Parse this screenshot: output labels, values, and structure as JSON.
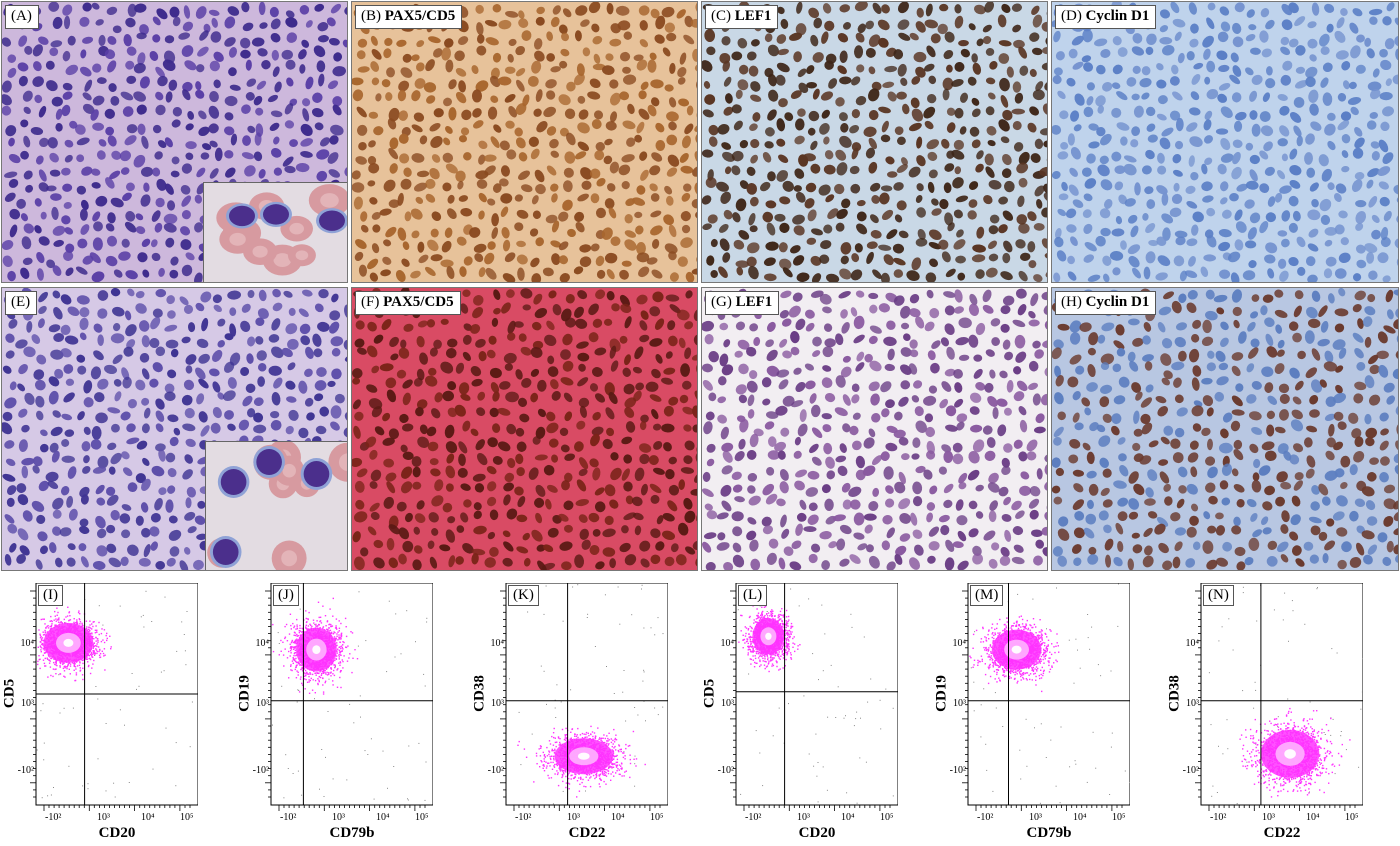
{
  "micrographs": [
    {
      "id": "A",
      "label": "(A)",
      "marker": "",
      "base": "#cdb8dc",
      "cell": "#3d2a8c",
      "cell2": "#5a3fa6",
      "inset": true
    },
    {
      "id": "B",
      "label": "(B)",
      "marker": "PAX5/CD5",
      "base": "#e7c29a",
      "cell": "#8a4a20",
      "cell2": "#a8662e",
      "inset": false
    },
    {
      "id": "C",
      "label": "(C)",
      "marker": "LEF1",
      "base": "#c9d8e6",
      "cell": "#3e2618",
      "cell2": "#5a3624",
      "inset": false
    },
    {
      "id": "D",
      "label": "(D)",
      "marker": "Cyclin D1",
      "base": "#bfd3ec",
      "cell": "#5b7fc6",
      "cell2": "#7593cf",
      "inset": false
    },
    {
      "id": "E",
      "label": "(E)",
      "marker": "",
      "base": "#d6c9e6",
      "cell": "#3f3493",
      "cell2": "#5e4faa",
      "inset": true
    },
    {
      "id": "F",
      "label": "(F)",
      "marker": "PAX5/CD5",
      "base": "#d94b64",
      "cell": "#5a1a14",
      "cell2": "#7a2418",
      "inset": false
    },
    {
      "id": "G",
      "label": "(G)",
      "marker": "LEF1",
      "base": "#f2eef2",
      "cell": "#6b3e86",
      "cell2": "#8a5aa0",
      "inset": false
    },
    {
      "id": "H",
      "label": "(H)",
      "marker": "Cyclin D1",
      "base": "#b8c7e2",
      "cell": "#6a3a2e",
      "cell2": "#5c7ec0",
      "inset": false
    }
  ],
  "flow_plots": [
    {
      "id": "I",
      "label": "(I)",
      "x_axis": "CD20",
      "y_axis": "CD5",
      "yticks": [
        "10⁴",
        "10³",
        "-10²"
      ],
      "xticks": [
        "-10²",
        "10³",
        "10⁴",
        "10⁵"
      ],
      "cluster": [
        0.2,
        0.27
      ],
      "spread": [
        0.17,
        0.1
      ],
      "qx": 0.3,
      "qy": 0.5
    },
    {
      "id": "J",
      "label": "(J)",
      "x_axis": "CD79b",
      "y_axis": "CD19",
      "yticks": [
        "10⁴",
        "10³",
        "-10²"
      ],
      "xticks": [
        "-10²",
        "10³",
        "10⁴",
        "10⁵"
      ],
      "cluster": [
        0.28,
        0.3
      ],
      "spread": [
        0.14,
        0.11
      ],
      "qx": 0.2,
      "qy": 0.53
    },
    {
      "id": "K",
      "label": "(K)",
      "x_axis": "CD22",
      "y_axis": "CD38",
      "yticks": [
        "10⁴",
        "10³",
        "-10²"
      ],
      "xticks": [
        "-10²",
        "10³",
        "10⁴",
        "10⁵"
      ],
      "cluster": [
        0.48,
        0.78
      ],
      "spread": [
        0.2,
        0.09
      ],
      "qx": 0.38,
      "qy": 0.53
    },
    {
      "id": "L",
      "label": "(L)",
      "x_axis": "CD20",
      "y_axis": "CD5",
      "yticks": [
        "10⁴",
        "10³",
        "-10²"
      ],
      "xticks": [
        "-10²",
        "10³",
        "10⁴",
        "10⁵"
      ],
      "cluster": [
        0.2,
        0.24
      ],
      "spread": [
        0.11,
        0.09
      ],
      "qx": 0.3,
      "qy": 0.49
    },
    {
      "id": "M",
      "label": "(M)",
      "x_axis": "CD79b",
      "y_axis": "CD19",
      "yticks": [
        "10⁴",
        "10³",
        "-10²"
      ],
      "xticks": [
        "-10²",
        "10³",
        "10⁴",
        "10⁵"
      ],
      "cluster": [
        0.3,
        0.3
      ],
      "spread": [
        0.17,
        0.1
      ],
      "qx": 0.25,
      "qy": 0.53
    },
    {
      "id": "N",
      "label": "(N)",
      "x_axis": "CD22",
      "y_axis": "CD38",
      "yticks": [
        "10⁴",
        "10³",
        "-10²"
      ],
      "xticks": [
        "-10²",
        "10³",
        "10⁴",
        "10⁵"
      ],
      "cluster": [
        0.55,
        0.77
      ],
      "spread": [
        0.2,
        0.12
      ],
      "qx": 0.37,
      "qy": 0.53
    }
  ]
}
